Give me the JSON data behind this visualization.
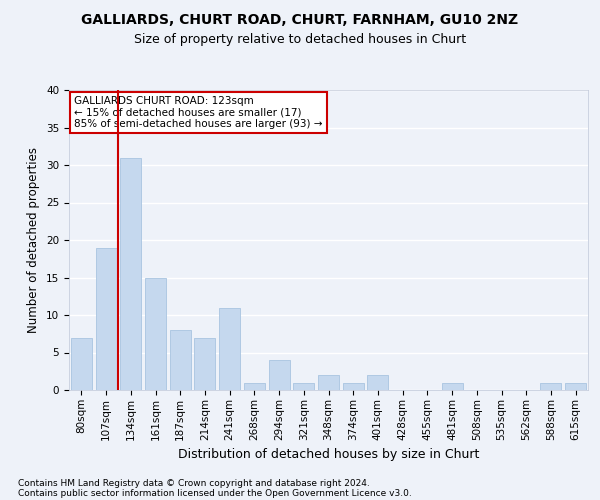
{
  "title1": "GALLIARDS, CHURT ROAD, CHURT, FARNHAM, GU10 2NZ",
  "title2": "Size of property relative to detached houses in Churt",
  "xlabel": "Distribution of detached houses by size in Churt",
  "ylabel": "Number of detached properties",
  "categories": [
    "80sqm",
    "107sqm",
    "134sqm",
    "161sqm",
    "187sqm",
    "214sqm",
    "241sqm",
    "268sqm",
    "294sqm",
    "321sqm",
    "348sqm",
    "374sqm",
    "401sqm",
    "428sqm",
    "455sqm",
    "481sqm",
    "508sqm",
    "535sqm",
    "562sqm",
    "588sqm",
    "615sqm"
  ],
  "values": [
    7,
    19,
    31,
    15,
    8,
    7,
    11,
    1,
    4,
    1,
    2,
    1,
    2,
    0,
    0,
    1,
    0,
    0,
    0,
    1,
    1
  ],
  "bar_color": "#c5d8ee",
  "bar_edge_color": "#a8c4e0",
  "vline_color": "#cc0000",
  "vline_pos": 1.5,
  "annotation_text": "GALLIARDS CHURT ROAD: 123sqm\n← 15% of detached houses are smaller (17)\n85% of semi-detached houses are larger (93) →",
  "annotation_box_facecolor": "#ffffff",
  "annotation_box_edgecolor": "#cc0000",
  "ylim": [
    0,
    40
  ],
  "yticks": [
    0,
    5,
    10,
    15,
    20,
    25,
    30,
    35,
    40
  ],
  "footer1": "Contains HM Land Registry data © Crown copyright and database right 2024.",
  "footer2": "Contains public sector information licensed under the Open Government Licence v3.0.",
  "background_color": "#eef2f9",
  "axes_background": "#eef2f9",
  "title1_fontsize": 10,
  "title2_fontsize": 9,
  "ylabel_fontsize": 8.5,
  "xlabel_fontsize": 9,
  "grid_color": "#ffffff",
  "tick_fontsize": 7.5,
  "footer_fontsize": 6.5
}
